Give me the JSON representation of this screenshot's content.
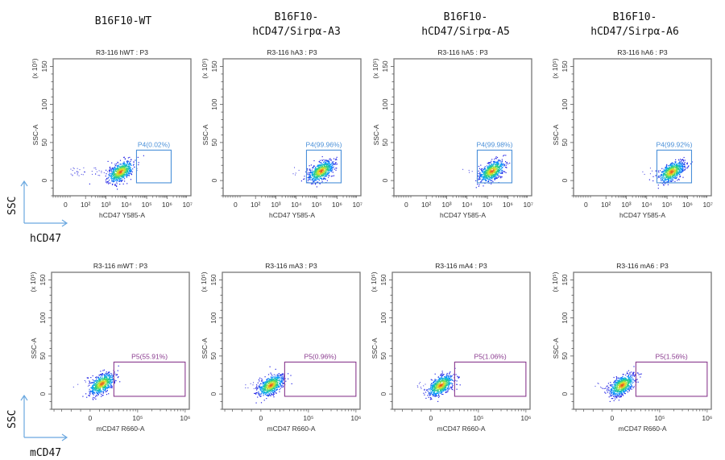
{
  "columns": [
    {
      "title_line1": "B16F10-WT",
      "title_line2": ""
    },
    {
      "title_line1": "B16F10-",
      "title_line2": "hCD47/Sirpα-A3"
    },
    {
      "title_line1": "B16F10-",
      "title_line2": "hCD47/Sirpα-A5"
    },
    {
      "title_line1": "B16F10-",
      "title_line2": "hCD47/Sirpα-A6"
    }
  ],
  "row_labels": [
    {
      "y_label": "SSC",
      "x_label": "hCD47"
    },
    {
      "y_label": "SSC",
      "x_label": "mCD47"
    }
  ],
  "colors": {
    "p4_gate": "#4a90d9",
    "p5_gate": "#8a3a8f",
    "axis_arrow": "#6aa8e0",
    "frame": "#777777"
  },
  "chart_data": [
    {
      "type": "scatter",
      "title": "R3-116 hWT : P3",
      "xlabel": "hCD47 Y585-A",
      "ylabel": "SSC-A",
      "y_multiplier": "(x 10^5)",
      "xticks": [
        "0",
        "10²",
        "10³",
        "10⁴",
        "10⁵",
        "10⁶",
        "10⁷"
      ],
      "yticks": [
        "0",
        "50",
        "100",
        "150"
      ],
      "ylim": [
        -20,
        160
      ],
      "gate": {
        "name": "P4",
        "percent": "0.02%",
        "label": "P4(0.02%)",
        "x_range_log": [
          4.5,
          6.2
        ],
        "y_range": [
          -3,
          40
        ]
      },
      "population_center": {
        "x_log": 3.7,
        "y": 12
      }
    },
    {
      "type": "scatter",
      "title": "R3-116 hA3 : P3",
      "xlabel": "hCD47 Y585-A",
      "ylabel": "SSC-A",
      "y_multiplier": "(x 10^5)",
      "xticks": [
        "0",
        "10²",
        "10³",
        "10⁴",
        "10⁵",
        "10⁶",
        "10⁷"
      ],
      "yticks": [
        "0",
        "50",
        "100",
        "150"
      ],
      "ylim": [
        -20,
        160
      ],
      "gate": {
        "name": "P4",
        "percent": "99.96%",
        "label": "P4(99.96%)",
        "x_range_log": [
          4.5,
          6.2
        ],
        "y_range": [
          -3,
          40
        ]
      },
      "population_center": {
        "x_log": 5.2,
        "y": 13
      }
    },
    {
      "type": "scatter",
      "title": "R3-116 hA5 : P3",
      "xlabel": "hCD47 Y585-A",
      "ylabel": "SSC-A",
      "y_multiplier": "(x 10^5)",
      "xticks": [
        "0",
        "10²",
        "10³",
        "10⁴",
        "10⁵",
        "10⁶",
        "10⁷"
      ],
      "yticks": [
        "0",
        "50",
        "100",
        "150"
      ],
      "ylim": [
        -20,
        160
      ],
      "gate": {
        "name": "P4",
        "percent": "99.98%",
        "label": "P4(99.98%)",
        "x_range_log": [
          4.5,
          6.2
        ],
        "y_range": [
          -3,
          40
        ]
      },
      "population_center": {
        "x_log": 5.2,
        "y": 13
      }
    },
    {
      "type": "scatter",
      "title": "R3-116 hA6 : P3",
      "xlabel": "hCD47 Y585-A",
      "ylabel": "SSC-A",
      "y_multiplier": "(x 10^5)",
      "xticks": [
        "0",
        "10²",
        "10³",
        "10⁴",
        "10⁵",
        "10⁶",
        "10⁷"
      ],
      "yticks": [
        "0",
        "50",
        "100",
        "150"
      ],
      "ylim": [
        -20,
        160
      ],
      "gate": {
        "name": "P4",
        "percent": "99.92%",
        "label": "P4(99.92%)",
        "x_range_log": [
          4.5,
          6.2
        ],
        "y_range": [
          -3,
          40
        ]
      },
      "population_center": {
        "x_log": 5.2,
        "y": 12
      }
    },
    {
      "type": "scatter",
      "title": "R3-116 mWT : P3",
      "xlabel": "mCD47 R660-A",
      "ylabel": "SSC-A",
      "y_multiplier": "(x 10^5)",
      "xticks": [
        "0",
        "10⁵",
        "10⁶"
      ],
      "yticks": [
        "0",
        "50",
        "100",
        "150"
      ],
      "ylim": [
        -20,
        160
      ],
      "gate": {
        "name": "P5",
        "percent": "55.91%",
        "label": "P5(55.91%)",
        "x_range": [
          0.25,
          1.0
        ],
        "y_range": [
          -3,
          42
        ]
      },
      "population_center": {
        "x": 0.12,
        "y": 14
      }
    },
    {
      "type": "scatter",
      "title": "R3-116 mA3 : P3",
      "xlabel": "mCD47 R660-A",
      "ylabel": "SSC-A",
      "y_multiplier": "(x 10^5)",
      "xticks": [
        "0",
        "10⁵",
        "10⁶"
      ],
      "yticks": [
        "0",
        "50",
        "100",
        "150"
      ],
      "ylim": [
        -20,
        160
      ],
      "gate": {
        "name": "P5",
        "percent": "0.96%",
        "label": "P5(0.96%)",
        "x_range": [
          0.25,
          1.0
        ],
        "y_range": [
          -3,
          42
        ]
      },
      "population_center": {
        "x": 0.1,
        "y": 12
      }
    },
    {
      "type": "scatter",
      "title": "R3-116 mA4 : P3",
      "xlabel": "mCD47 R660-A",
      "ylabel": "SSC-A",
      "y_multiplier": "(x 10^5)",
      "xticks": [
        "0",
        "10⁵",
        "10⁶"
      ],
      "yticks": [
        "0",
        "50",
        "100",
        "150"
      ],
      "ylim": [
        -20,
        160
      ],
      "gate": {
        "name": "P5",
        "percent": "1.06%",
        "label": "P5(1.06%)",
        "x_range": [
          0.25,
          1.0
        ],
        "y_range": [
          -3,
          42
        ]
      },
      "population_center": {
        "x": 0.1,
        "y": 12
      }
    },
    {
      "type": "scatter",
      "title": "R3-116 mA6 : P3",
      "xlabel": "mCD47 R660-A",
      "ylabel": "SSC-A",
      "y_multiplier": "(x 10^5)",
      "xticks": [
        "0",
        "10⁵",
        "10⁶"
      ],
      "yticks": [
        "0",
        "50",
        "100",
        "150"
      ],
      "ylim": [
        -20,
        160
      ],
      "gate": {
        "name": "P5",
        "percent": "1.56%",
        "label": "P5(1.56%)",
        "x_range": [
          0.25,
          1.0
        ],
        "y_range": [
          -3,
          42
        ]
      },
      "population_center": {
        "x": 0.1,
        "y": 12
      }
    }
  ]
}
